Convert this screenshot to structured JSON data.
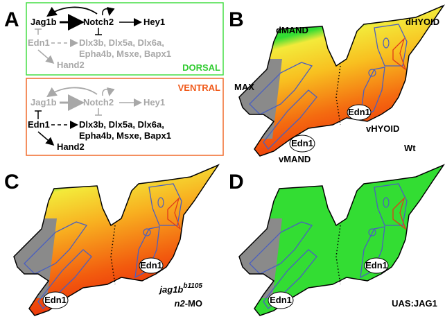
{
  "panel_a": {
    "label": "A",
    "dorsal": {
      "jag1b": "Jag1b",
      "notch2": "Notch2",
      "hey1": "Hey1",
      "edn1": "Edn1",
      "targets": [
        "Dlx3b, Dlx5a, Dlx6a,",
        "Epha4b, Msxe, Bapx1"
      ],
      "hand2": "Hand2",
      "region": "DORSAL"
    },
    "ventral": {
      "jag1b": "Jag1b",
      "notch2": "Notch2",
      "hey1": "Hey1",
      "edn1": "Edn1",
      "targets": [
        "Dlx3b, Dlx5a, Dlx6a,",
        "Epha4b, Msxe, Bapx1"
      ],
      "hand2": "Hand2",
      "region": "VENTRAL"
    }
  },
  "panel_b": {
    "label": "B",
    "dmand": "dMAND",
    "dhyoid": "dHYOID",
    "max": "MAX",
    "edn1_hyoid": "Edn1",
    "vhyoid": "vHYOID",
    "edn1_mand": "Edn1",
    "vmand": "vMAND",
    "condition": "Wt"
  },
  "panel_c": {
    "label": "C",
    "edn1_hyoid": "Edn1",
    "edn1_mand": "Edn1",
    "gene": "jag1b",
    "allele": "b1105",
    "morpholino_gene": "n2",
    "morpholino_suffix": "-MO"
  },
  "panel_d": {
    "label": "D",
    "edn1_hyoid": "Edn1",
    "edn1_mand": "Edn1",
    "condition": "UAS:JAG1"
  }
}
